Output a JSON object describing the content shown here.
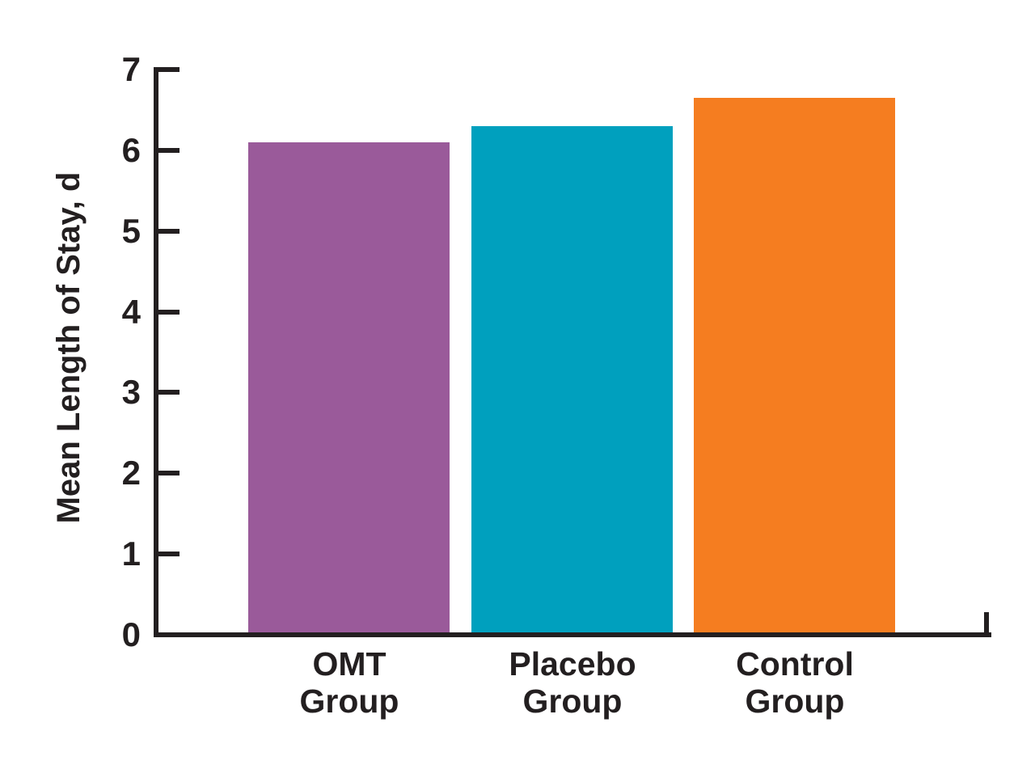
{
  "chart_data": {
    "type": "bar",
    "title": "",
    "ylabel": "Mean Length of Stay, d",
    "xlabel": "",
    "categories": [
      "OMT Group",
      "Placebo Group",
      "Control Group"
    ],
    "category_lines": [
      [
        "OMT",
        "Group"
      ],
      [
        "Placebo",
        "Group"
      ],
      [
        "Control",
        "Group"
      ]
    ],
    "values": [
      6.1,
      6.3,
      6.65
    ],
    "yticks": [
      0,
      1,
      2,
      3,
      4,
      5,
      6,
      7
    ],
    "ylim": [
      0,
      7
    ],
    "grid": false,
    "legend": "none",
    "bar_colors": [
      "#9A5A9A",
      "#00A0BE",
      "#F57D20"
    ],
    "axis_color": "#231F20",
    "text_color": "#231F20",
    "background": "#FFFFFF"
  }
}
